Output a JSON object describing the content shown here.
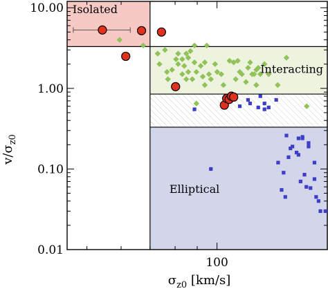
{
  "chart_data": {
    "type": "scatter",
    "xlabel_base": "σ",
    "xlabel_sub": "z0",
    "xlabel_unit": " [km/s]",
    "ylabel_base": "v/σ",
    "ylabel_sub": "z0",
    "x_scale": "log",
    "y_scale": "log",
    "xlim": [
      45,
      180
    ],
    "ylim": [
      0.01,
      12
    ],
    "x_ticks": [
      {
        "value": 100,
        "label": "100"
      }
    ],
    "y_ticks": [
      {
        "value": 10,
        "label": "10.00"
      },
      {
        "value": 1,
        "label": "1.00"
      },
      {
        "value": 0.1,
        "label": "0.10"
      },
      {
        "value": 0.01,
        "label": "0.01"
      }
    ],
    "grid": false,
    "regions": [
      {
        "name": "Isolated",
        "x_range": [
          45,
          70
        ],
        "y_range": [
          3.3,
          12
        ],
        "color": "#f7c9c4"
      },
      {
        "name": "Interacting",
        "x_range": [
          70,
          180
        ],
        "y_range": [
          0.85,
          3.3
        ],
        "color": "#edf3df"
      },
      {
        "name": "",
        "x_range": [
          70,
          180
        ],
        "y_range": [
          0.33,
          0.85
        ],
        "pattern": "hatched",
        "color": "#cccccc"
      },
      {
        "name": "Elliptical",
        "x_range": [
          70,
          180
        ],
        "y_range": [
          0.01,
          0.33
        ],
        "color": "#d3d5ea"
      }
    ],
    "series": [
      {
        "marker": "diamond",
        "color": "#90c25a",
        "points": [
          [
            59.5,
            4.0
          ],
          [
            67.5,
            3.4
          ],
          [
            72.9,
            2.7
          ],
          [
            73.6,
            2.0
          ],
          [
            75.8,
            3.0
          ],
          [
            76.6,
            1.6
          ],
          [
            77.0,
            1.3
          ],
          [
            78.7,
            1.7
          ],
          [
            80.4,
            2.3
          ],
          [
            81.3,
            2.7
          ],
          [
            81.3,
            2.0
          ],
          [
            83.1,
            2.3
          ],
          [
            83.1,
            1.5
          ],
          [
            84.0,
            1.9
          ],
          [
            84.9,
            2.7
          ],
          [
            84.9,
            1.3
          ],
          [
            85.8,
            2.4
          ],
          [
            85.8,
            1.6
          ],
          [
            86.8,
            2.9
          ],
          [
            87.7,
            1.3
          ],
          [
            88.7,
            3.4
          ],
          [
            88.7,
            2.1
          ],
          [
            89.6,
            1.6
          ],
          [
            89.6,
            0.65
          ],
          [
            91.7,
            1.9
          ],
          [
            92.7,
            1.4
          ],
          [
            93.7,
            2.1
          ],
          [
            93.7,
            1.1
          ],
          [
            94.7,
            3.4
          ],
          [
            95.8,
            1.5
          ],
          [
            96.8,
            1.3
          ],
          [
            99.0,
            2.0
          ],
          [
            100.1,
            1.6
          ],
          [
            102.3,
            1.5
          ],
          [
            103.5,
            1.1
          ],
          [
            106.9,
            2.2
          ],
          [
            109.3,
            2.1
          ],
          [
            110.5,
            1.3
          ],
          [
            111.7,
            2.2
          ],
          [
            112.9,
            1.6
          ],
          [
            114.2,
            1.5
          ],
          [
            116.7,
            1.2
          ],
          [
            118.0,
            1.8
          ],
          [
            119.3,
            2.1
          ],
          [
            120.6,
            1.5
          ],
          [
            121.9,
            1.5
          ],
          [
            123.3,
            1.7
          ],
          [
            123.3,
            1.1
          ],
          [
            124.6,
            1.8
          ],
          [
            126.0,
            1.5
          ],
          [
            128.8,
            2.0
          ],
          [
            131.7,
            1.5
          ],
          [
            138.2,
            1.1
          ],
          [
            144.8,
            2.4
          ],
          [
            161.3,
            0.6
          ]
        ]
      },
      {
        "marker": "square",
        "color": "#3d3dc8",
        "points": [
          [
            88.7,
            0.55
          ],
          [
            96.8,
            0.1
          ],
          [
            112.9,
            0.6
          ],
          [
            118.0,
            0.72
          ],
          [
            119.3,
            0.65
          ],
          [
            124.6,
            0.58
          ],
          [
            126.0,
            0.8
          ],
          [
            128.8,
            0.55
          ],
          [
            128.8,
            0.65
          ],
          [
            131.7,
            0.58
          ],
          [
            137.1,
            0.72
          ],
          [
            138.5,
            0.12
          ],
          [
            141.1,
            0.055
          ],
          [
            142.6,
            0.09
          ],
          [
            143.9,
            0.045
          ],
          [
            144.8,
            0.26
          ],
          [
            146.4,
            0.14
          ],
          [
            147.9,
            0.18
          ],
          [
            149.5,
            0.19
          ],
          [
            152.8,
            0.16
          ],
          [
            154.4,
            0.15
          ],
          [
            154.4,
            0.24
          ],
          [
            156.1,
            0.07
          ],
          [
            157.7,
            0.25
          ],
          [
            157.7,
            0.24
          ],
          [
            159.4,
            0.085
          ],
          [
            161.0,
            0.06
          ],
          [
            162.9,
            0.19
          ],
          [
            162.9,
            0.21
          ],
          [
            164.6,
            0.058
          ],
          [
            168.1,
            0.075
          ],
          [
            168.1,
            0.12
          ],
          [
            169.6,
            0.045
          ],
          [
            171.8,
            0.04
          ],
          [
            173.5,
            0.03
          ],
          [
            178.2,
            0.03
          ],
          [
            181.0,
            0.02
          ]
        ]
      },
      {
        "marker": "circle",
        "color": "#e0301e",
        "points": [
          [
            54.3,
            5.3
          ],
          [
            61.5,
            2.5
          ],
          [
            66.9,
            5.2
          ],
          [
            74.4,
            5.0
          ],
          [
            80.2,
            1.05
          ],
          [
            104.0,
            0.62
          ],
          [
            105.3,
            0.75
          ],
          [
            106.7,
            0.73
          ],
          [
            108.0,
            0.8
          ],
          [
            109.3,
            0.78
          ]
        ]
      }
    ],
    "error_bars": [
      {
        "x": 54.3,
        "y": 5.3,
        "xerr": [
          7.8,
          8.7
        ]
      }
    ]
  }
}
